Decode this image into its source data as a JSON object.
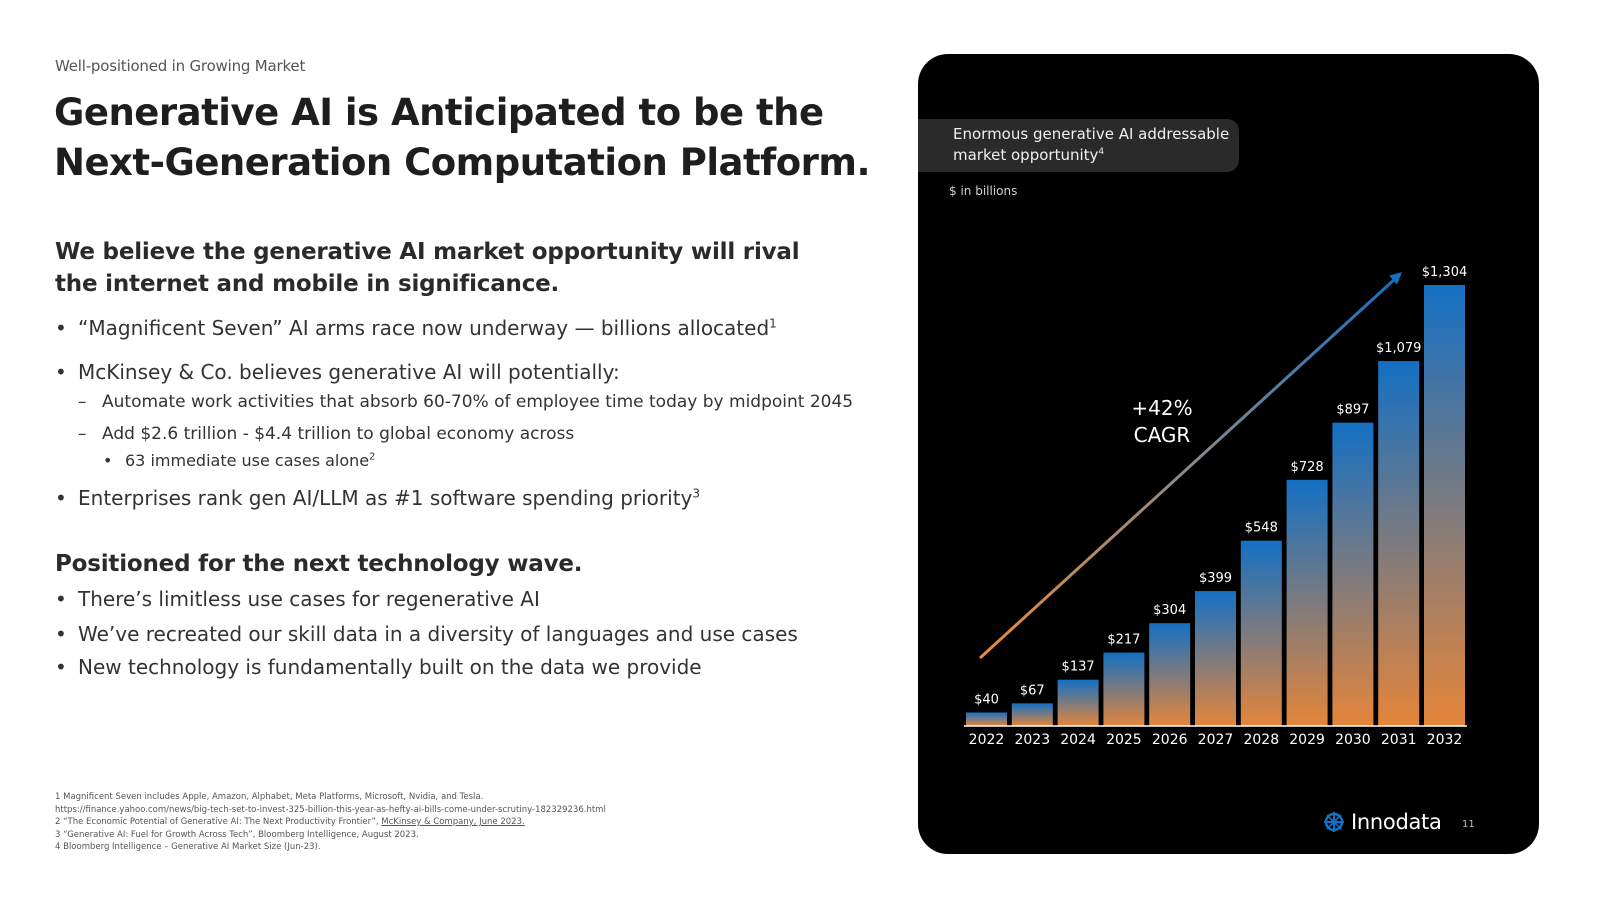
{
  "header": {
    "eyebrow": "Well-positioned in Growing Market",
    "title_line1": "Generative AI is Anticipated to be the",
    "title_line2": "Next-Generation Computation Platform."
  },
  "section1": {
    "heading": "We believe the generative AI market opportunity will rival the internet and mobile in significance.",
    "bullet1": "“Magnificent Seven” AI arms race now underway — billions allocated",
    "bullet1_sup": "1",
    "bullet2": "McKinsey & Co. believes generative AI will potentially:",
    "sub1": "Automate work activities that absorb 60-70% of employee time today by midpoint 2045",
    "sub2": "Add $2.6 trillion - $4.4 trillion to global economy across",
    "subsub1": "63 immediate use cases alone",
    "subsub1_sup": "2",
    "bullet3": "Enterprises rank gen AI/LLM as #1 software spending priority",
    "bullet3_sup": "3"
  },
  "section2": {
    "heading": "Positioned for the next technology wave.",
    "bullet1": "There’s limitless use cases for regenerative AI",
    "bullet2": "We’ve recreated our skill data in a diversity of languages and use cases",
    "bullet3": "New technology is fundamentally built on the data we provide"
  },
  "footnotes": {
    "f1": "1 Magnificent Seven includes Apple, Amazon, Alphabet, Meta Platforms, Microsoft, Nvidia, and Tesla.",
    "f1_url": "https://finance.yahoo.com/news/big-tech-set-to-invest-325-billion-this-year-as-hefty-ai-bills-come-under-scrutiny-182329236.html",
    "f2": "2 “The Economic Potential of Generative AI: The Next Productivity Frontier”, ",
    "f2_link": "McKinsey & Company, June 2023.",
    "f3": "3 “Generative AI: Fuel for Growth Across Tech”, Bloomberg Intelligence, August 2023.",
    "f4": "4 Bloomberg Intelligence – Generative AI Market Size (Jun-23)."
  },
  "panel": {
    "badge_line1": "Enormous generative AI addressable",
    "badge_line2": "market opportunity",
    "badge_sup": "4",
    "units": "$ in billions",
    "brand": "Innodata",
    "brand_icon": "innodata-logo-icon",
    "page_number": "11"
  },
  "chart_data": {
    "type": "bar",
    "categories": [
      "2022",
      "2023",
      "2024",
      "2025",
      "2026",
      "2027",
      "2028",
      "2029",
      "2030",
      "2031",
      "2032"
    ],
    "values": [
      40,
      67,
      137,
      217,
      304,
      399,
      548,
      728,
      897,
      1079,
      1304
    ],
    "data_labels": [
      "$40",
      "$67",
      "$137",
      "$217",
      "$304",
      "$399",
      "$548",
      "$728",
      "$897",
      "$1,079",
      "$1,304"
    ],
    "ylabel": "$ in billions",
    "ylim": [
      0,
      1304
    ],
    "grid": false,
    "annotation_line1": "+42%",
    "annotation_line2": "CAGR",
    "bar_color_top": "#1470c4",
    "bar_color_bottom": "#e5853a",
    "arrow_color_start": "#e8893a",
    "arrow_color_end": "#1470c4"
  }
}
